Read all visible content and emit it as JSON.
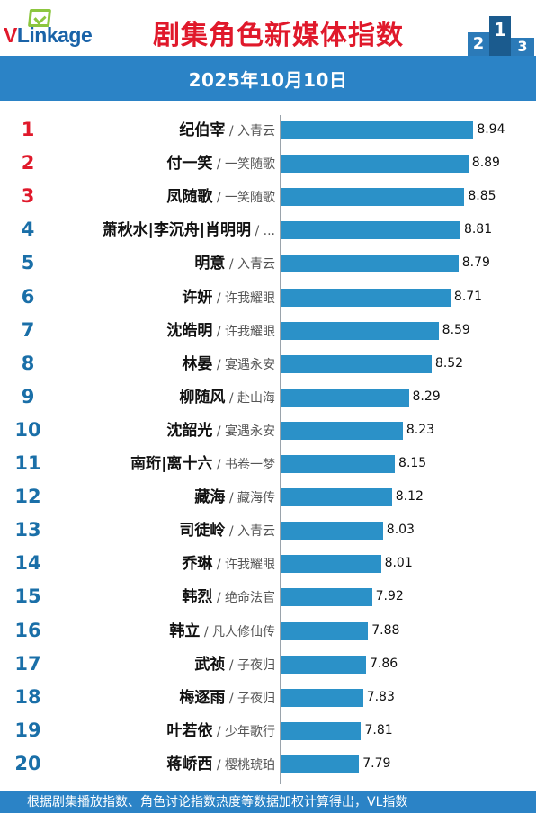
{
  "header": {
    "logo_text_v": "V",
    "logo_text_rest": "Linkage",
    "title": "剧集角色新媒体指数",
    "podium_labels": [
      "2",
      "1",
      "3"
    ],
    "date": "2025年10月10日"
  },
  "colors": {
    "brand_red": "#e0192b",
    "brand_blue": "#2b83c6",
    "bar_blue": "#2b91c8",
    "rank_blue": "#1a6fa8",
    "logo_green": "#8cc63f"
  },
  "chart_data": {
    "type": "bar",
    "orientation": "horizontal",
    "title": "剧集角色新媒体指数",
    "xlim": [
      7.0,
      9.1
    ],
    "grid": false,
    "legend": "none",
    "categories": [
      {
        "rank": "1",
        "name": "纪伯宰",
        "show": " / 入青云",
        "value": 8.94
      },
      {
        "rank": "2",
        "name": "付一笑",
        "show": " / 一笑随歌",
        "value": 8.89
      },
      {
        "rank": "3",
        "name": "凤随歌",
        "show": " / 一笑随歌",
        "value": 8.85
      },
      {
        "rank": "4",
        "name": "萧秋水|李沉舟|肖明明",
        "show": " / ...",
        "value": 8.81
      },
      {
        "rank": "5",
        "name": "明意",
        "show": " / 入青云",
        "value": 8.79
      },
      {
        "rank": "6",
        "name": "许妍",
        "show": " / 许我耀眼",
        "value": 8.71
      },
      {
        "rank": "7",
        "name": "沈皓明",
        "show": " / 许我耀眼",
        "value": 8.59
      },
      {
        "rank": "8",
        "name": "林晏",
        "show": " / 宴遇永安",
        "value": 8.52
      },
      {
        "rank": "9",
        "name": "柳随风",
        "show": " / 赴山海",
        "value": 8.29
      },
      {
        "rank": "10",
        "name": "沈韶光",
        "show": " / 宴遇永安",
        "value": 8.23
      },
      {
        "rank": "11",
        "name": "南珩|离十六",
        "show": " / 书卷一梦",
        "value": 8.15
      },
      {
        "rank": "12",
        "name": "藏海",
        "show": " / 藏海传",
        "value": 8.12
      },
      {
        "rank": "13",
        "name": "司徒岭",
        "show": " / 入青云",
        "value": 8.03
      },
      {
        "rank": "14",
        "name": "乔琳",
        "show": " / 许我耀眼",
        "value": 8.01
      },
      {
        "rank": "15",
        "name": "韩烈",
        "show": " / 绝命法官",
        "value": 7.92
      },
      {
        "rank": "16",
        "name": "韩立",
        "show": " / 凡人修仙传",
        "value": 7.88
      },
      {
        "rank": "17",
        "name": "武祯",
        "show": " / 子夜归",
        "value": 7.86
      },
      {
        "rank": "18",
        "name": "梅逐雨",
        "show": " / 子夜归",
        "value": 7.83
      },
      {
        "rank": "19",
        "name": "叶若依",
        "show": " / 少年歌行",
        "value": 7.81
      },
      {
        "rank": "20",
        "name": "蒋峤西",
        "show": " / 樱桃琥珀",
        "value": 7.79
      }
    ]
  },
  "footer": {
    "text": "根据剧集播放指数、角色讨论指数热度等数据加权计算得出，VL指数"
  }
}
